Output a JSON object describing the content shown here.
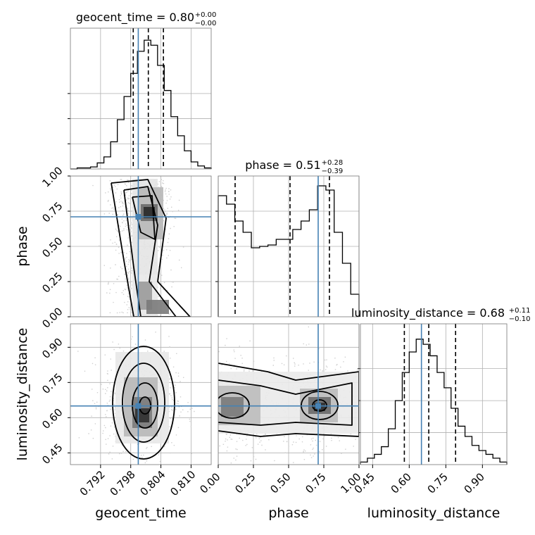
{
  "chart_data": {
    "type": "corner",
    "parameters": [
      "geocent_time",
      "phase",
      "luminosity_distance"
    ],
    "truths": {
      "geocent_time": 0.7995,
      "phase": 0.71,
      "luminosity_distance": 0.65
    },
    "colors": {
      "truth": "#4682b4",
      "hist": "#000000",
      "grid": "#b0b0b0"
    },
    "grid": true,
    "diagonal": [
      {
        "parameter": "geocent_time",
        "title_main": "geocent_time = 0.80",
        "title_plus": "+0.00",
        "title_minus": "−0.00",
        "xlim": [
          0.786,
          0.814
        ],
        "quantiles": [
          0.7985,
          0.8015,
          0.8045
        ],
        "hist_values": [
          0,
          1,
          1,
          2,
          6,
          12,
          27,
          49,
          72,
          95,
          117,
          128,
          123,
          103,
          78,
          52,
          33,
          18,
          7,
          3,
          1
        ],
        "hist_max": 140
      },
      {
        "parameter": "phase",
        "title_main": "phase = 0.51",
        "title_plus": "+0.28",
        "title_minus": "−0.39",
        "xlim": [
          0.0,
          1.0
        ],
        "quantiles": [
          0.12,
          0.51,
          0.79
        ],
        "hist_values": [
          86,
          80,
          68,
          60,
          49,
          50,
          51,
          55,
          55,
          62,
          68,
          76,
          93,
          90,
          60,
          38,
          16
        ],
        "hist_max": 100
      },
      {
        "parameter": "luminosity_distance",
        "title_main": "luminosity_distance = 0.68",
        "title_plus": "+0.11",
        "title_minus": "−0.10",
        "xlim": [
          0.4,
          1.0
        ],
        "quantiles": [
          0.58,
          0.68,
          0.79
        ],
        "hist_values": [
          2,
          5,
          8,
          14,
          28,
          50,
          72,
          88,
          98,
          94,
          85,
          72,
          60,
          44,
          30,
          22,
          15,
          11,
          8,
          5,
          2
        ],
        "hist_max": 110
      }
    ],
    "panels_2d": [
      {
        "x": "geocent_time",
        "y": "phase",
        "xlim": [
          0.786,
          0.814
        ],
        "ylim": [
          0.0,
          1.0
        ]
      },
      {
        "x": "geocent_time",
        "y": "luminosity_distance",
        "xlim": [
          0.786,
          0.814
        ],
        "ylim": [
          0.4,
          1.0
        ]
      },
      {
        "x": "phase",
        "y": "luminosity_distance",
        "xlim": [
          0.0,
          1.0
        ],
        "ylim": [
          0.4,
          1.0
        ]
      }
    ],
    "xticks": {
      "geocent_time": {
        "values": [
          0.792,
          0.798,
          0.804,
          0.81
        ],
        "labels": [
          "0.792",
          "0.798",
          "0.804",
          "0.810"
        ]
      },
      "phase": {
        "values": [
          0.0,
          0.25,
          0.5,
          0.75,
          1.0
        ],
        "labels": [
          "0.00",
          "0.25",
          "0.50",
          "0.75",
          "1.00"
        ]
      },
      "luminosity_distance": {
        "values": [
          0.45,
          0.6,
          0.75,
          0.9
        ],
        "labels": [
          "0.45",
          "0.60",
          "0.75",
          "0.90"
        ]
      }
    },
    "yticks": {
      "phase": {
        "values": [
          0.0,
          0.25,
          0.5,
          0.75,
          1.0
        ],
        "labels": [
          "0.00",
          "0.25",
          "0.50",
          "0.75",
          "1.00"
        ]
      },
      "luminosity_distance": {
        "values": [
          0.45,
          0.6,
          0.75,
          0.9
        ],
        "labels": [
          "0.45",
          "0.60",
          "0.75",
          "0.90"
        ]
      }
    },
    "xlabels": [
      "geocent_time",
      "phase",
      "luminosity_distance"
    ],
    "ylabels": [
      "phase",
      "luminosity_distance"
    ]
  }
}
